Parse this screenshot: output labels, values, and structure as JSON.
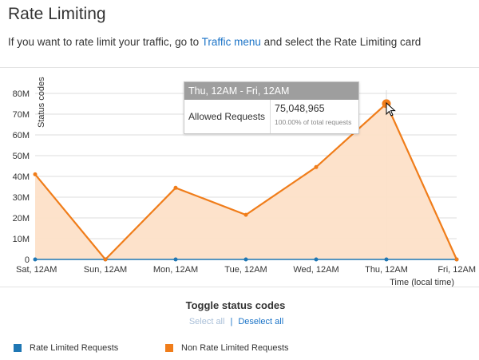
{
  "header": {
    "title": "Rate Limiting",
    "subtitle_before": "If you want to rate limit your traffic, go to",
    "subtitle_link": "Traffic menu",
    "subtitle_after": "and select the Rate Limiting card"
  },
  "tooltip": {
    "range": "Thu, 12AM - Fri, 12AM",
    "metric": "Allowed Requests",
    "value": "75,048,965",
    "percent_text": "100.00% of total requests"
  },
  "toggle": {
    "title": "Toggle status codes",
    "select_all": "Select all",
    "separator": "|",
    "deselect_all": "Deselect all"
  },
  "legend": [
    {
      "label": "Rate Limited Requests",
      "color": "#1f77b4"
    },
    {
      "label": "Non Rate Limited Requests",
      "color": "#f07d1a"
    }
  ],
  "chart_data": {
    "type": "area",
    "categories": [
      "Sat, 12AM",
      "Sun, 12AM",
      "Mon, 12AM",
      "Tue, 12AM",
      "Wed, 12AM",
      "Thu, 12AM",
      "Fri, 12AM"
    ],
    "series": [
      {
        "name": "Non Rate Limited Requests",
        "color": "#f07d1a",
        "fill": "#fde0c8",
        "values": [
          41000000,
          0,
          34500000,
          21500000,
          44500000,
          75048965,
          0
        ]
      },
      {
        "name": "Rate Limited Requests",
        "color": "#1f77b4",
        "values": [
          0,
          0,
          0,
          0,
          0,
          0,
          0
        ]
      }
    ],
    "ylabel": "Status codes",
    "xlabel": "Time (local time)",
    "ylim": [
      0,
      80000000
    ],
    "yticks": [
      0,
      10000000,
      20000000,
      30000000,
      40000000,
      50000000,
      60000000,
      70000000,
      80000000
    ],
    "ytick_labels": [
      "0",
      "10M",
      "20M",
      "30M",
      "40M",
      "50M",
      "60M",
      "70M",
      "80M"
    ],
    "highlight_index": 5,
    "grid": true,
    "legend_position": "bottom"
  }
}
